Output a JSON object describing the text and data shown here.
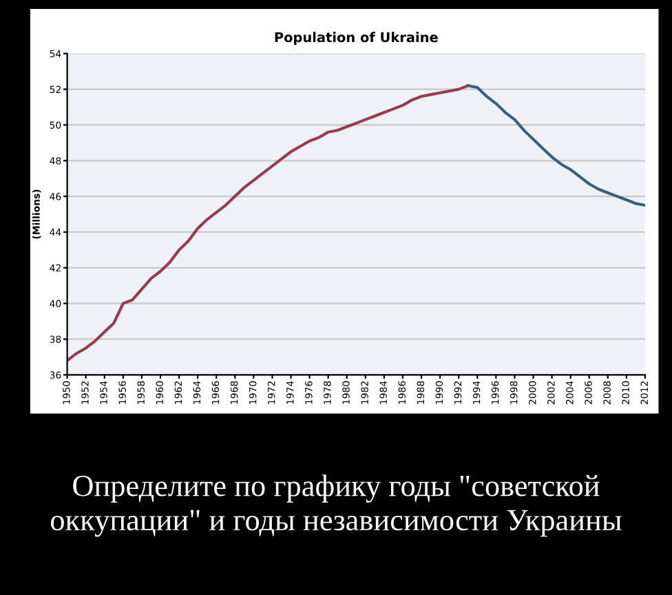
{
  "chart_data": {
    "type": "line",
    "title": "Population of Ukraine",
    "ylabel": "(Millions)",
    "series": [
      {
        "color": "#9b3a4c",
        "x": [
          1950,
          1951,
          1952,
          1953,
          1954,
          1955,
          1956,
          1957,
          1958,
          1959,
          1960,
          1961,
          1962,
          1963,
          1964,
          1965,
          1966,
          1967,
          1968,
          1969,
          1970,
          1971,
          1972,
          1973,
          1974,
          1975,
          1976,
          1977,
          1978,
          1979,
          1980,
          1981,
          1982,
          1983,
          1984,
          1985,
          1986,
          1987,
          1988,
          1989,
          1990,
          1991,
          1992,
          1993
        ],
        "values": [
          36.8,
          37.2,
          37.5,
          37.9,
          38.4,
          38.9,
          40.0,
          40.2,
          40.8,
          41.4,
          41.8,
          42.3,
          43.0,
          43.5,
          44.2,
          44.7,
          45.1,
          45.5,
          46.0,
          46.5,
          46.9,
          47.3,
          47.7,
          48.1,
          48.5,
          48.8,
          49.1,
          49.3,
          49.6,
          49.7,
          49.9,
          50.1,
          50.3,
          50.5,
          50.7,
          50.9,
          51.1,
          51.4,
          51.6,
          51.7,
          51.8,
          51.9,
          52.0,
          52.2
        ]
      },
      {
        "color": "#3d5f78",
        "x": [
          1993,
          1994,
          1995,
          1996,
          1997,
          1998,
          1999,
          2000,
          2001,
          2002,
          2003,
          2004,
          2005,
          2006,
          2007,
          2008,
          2009,
          2010,
          2011,
          2012
        ],
        "values": [
          52.2,
          52.1,
          51.6,
          51.2,
          50.7,
          50.3,
          49.7,
          49.2,
          48.7,
          48.2,
          47.8,
          47.5,
          47.1,
          46.7,
          46.4,
          46.2,
          46.0,
          45.8,
          45.6,
          45.5
        ]
      }
    ],
    "xlim": [
      1950,
      2012
    ],
    "xticks": [
      1950,
      1952,
      1954,
      1956,
      1958,
      1960,
      1962,
      1964,
      1966,
      1968,
      1970,
      1972,
      1974,
      1976,
      1978,
      1980,
      1982,
      1984,
      1986,
      1988,
      1990,
      1992,
      1994,
      1996,
      1998,
      2000,
      2002,
      2004,
      2006,
      2008,
      2010,
      2012
    ],
    "ylim": [
      36,
      54
    ],
    "yticks": [
      36,
      38,
      40,
      42,
      44,
      46,
      48,
      50,
      52,
      54
    ],
    "grid": "y",
    "legend": false,
    "marker": "none",
    "line_style": "solid",
    "annotations": [
      "Определите по графику годы \"советской оккупации\" и годы независимости Украины"
    ]
  }
}
